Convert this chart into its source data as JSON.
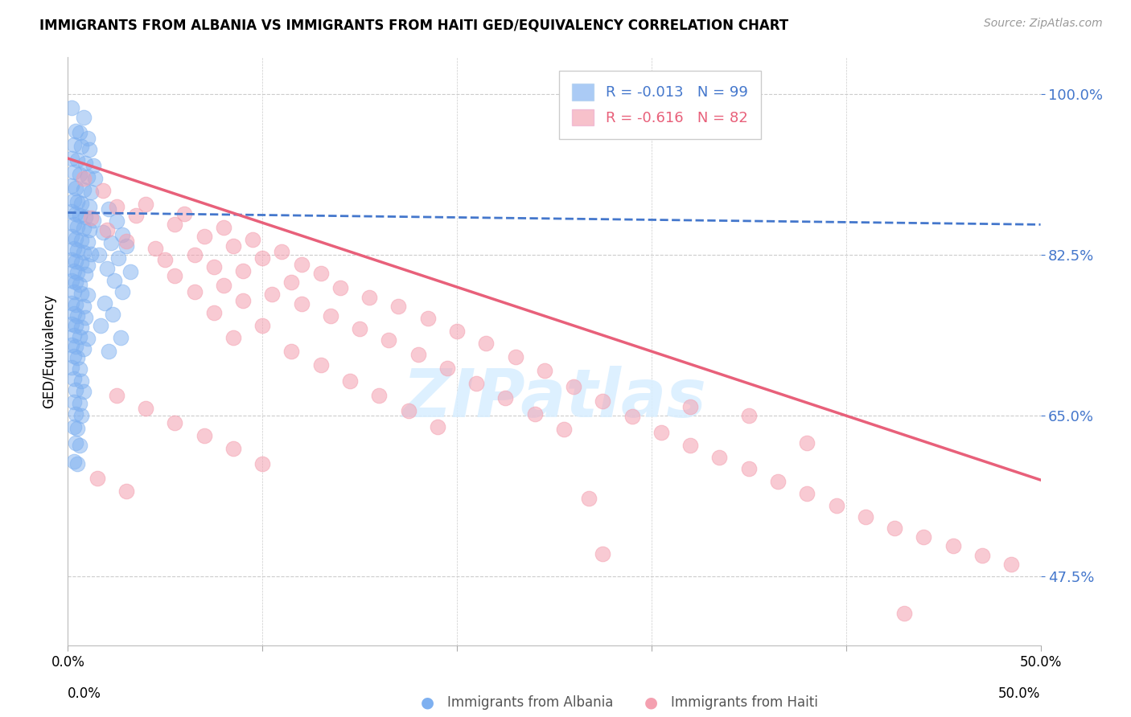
{
  "title": "IMMIGRANTS FROM ALBANIA VS IMMIGRANTS FROM HAITI GED/EQUIVALENCY CORRELATION CHART",
  "source": "Source: ZipAtlas.com",
  "ylabel": "GED/Equivalency",
  "yticks": [
    0.475,
    0.65,
    0.825,
    1.0
  ],
  "ytick_labels": [
    "47.5%",
    "65.0%",
    "82.5%",
    "100.0%"
  ],
  "xmin": 0.0,
  "xmax": 0.5,
  "ymin": 0.4,
  "ymax": 1.04,
  "legend_albania_R": "-0.013",
  "legend_albania_N": "99",
  "legend_haiti_R": "-0.616",
  "legend_haiti_N": "82",
  "albania_color": "#7EB0F0",
  "haiti_color": "#F4A0B0",
  "trendline_albania_color": "#4477CC",
  "trendline_haiti_color": "#E8607A",
  "watermark_color": "#D8EEFF",
  "albania_points": [
    [
      0.002,
      0.985
    ],
    [
      0.008,
      0.975
    ],
    [
      0.004,
      0.96
    ],
    [
      0.006,
      0.958
    ],
    [
      0.01,
      0.952
    ],
    [
      0.003,
      0.945
    ],
    [
      0.007,
      0.943
    ],
    [
      0.011,
      0.94
    ],
    [
      0.002,
      0.93
    ],
    [
      0.005,
      0.928
    ],
    [
      0.009,
      0.925
    ],
    [
      0.013,
      0.922
    ],
    [
      0.003,
      0.915
    ],
    [
      0.006,
      0.913
    ],
    [
      0.01,
      0.91
    ],
    [
      0.014,
      0.908
    ],
    [
      0.002,
      0.9
    ],
    [
      0.004,
      0.898
    ],
    [
      0.008,
      0.896
    ],
    [
      0.012,
      0.893
    ],
    [
      0.003,
      0.885
    ],
    [
      0.005,
      0.883
    ],
    [
      0.007,
      0.881
    ],
    [
      0.011,
      0.878
    ],
    [
      0.002,
      0.872
    ],
    [
      0.004,
      0.87
    ],
    [
      0.006,
      0.868
    ],
    [
      0.009,
      0.866
    ],
    [
      0.013,
      0.863
    ],
    [
      0.003,
      0.858
    ],
    [
      0.005,
      0.856
    ],
    [
      0.008,
      0.854
    ],
    [
      0.011,
      0.852
    ],
    [
      0.002,
      0.845
    ],
    [
      0.004,
      0.843
    ],
    [
      0.007,
      0.841
    ],
    [
      0.01,
      0.839
    ],
    [
      0.003,
      0.832
    ],
    [
      0.005,
      0.83
    ],
    [
      0.008,
      0.828
    ],
    [
      0.012,
      0.826
    ],
    [
      0.002,
      0.82
    ],
    [
      0.004,
      0.818
    ],
    [
      0.007,
      0.816
    ],
    [
      0.01,
      0.814
    ],
    [
      0.003,
      0.808
    ],
    [
      0.005,
      0.806
    ],
    [
      0.009,
      0.804
    ],
    [
      0.002,
      0.797
    ],
    [
      0.004,
      0.795
    ],
    [
      0.006,
      0.793
    ],
    [
      0.003,
      0.785
    ],
    [
      0.007,
      0.783
    ],
    [
      0.01,
      0.781
    ],
    [
      0.002,
      0.773
    ],
    [
      0.004,
      0.771
    ],
    [
      0.008,
      0.769
    ],
    [
      0.003,
      0.761
    ],
    [
      0.005,
      0.759
    ],
    [
      0.009,
      0.757
    ],
    [
      0.002,
      0.75
    ],
    [
      0.004,
      0.748
    ],
    [
      0.007,
      0.746
    ],
    [
      0.003,
      0.738
    ],
    [
      0.006,
      0.736
    ],
    [
      0.01,
      0.734
    ],
    [
      0.002,
      0.727
    ],
    [
      0.004,
      0.725
    ],
    [
      0.008,
      0.723
    ],
    [
      0.003,
      0.715
    ],
    [
      0.005,
      0.713
    ],
    [
      0.002,
      0.703
    ],
    [
      0.006,
      0.701
    ],
    [
      0.003,
      0.69
    ],
    [
      0.007,
      0.688
    ],
    [
      0.004,
      0.678
    ],
    [
      0.008,
      0.676
    ],
    [
      0.003,
      0.665
    ],
    [
      0.006,
      0.663
    ],
    [
      0.004,
      0.652
    ],
    [
      0.007,
      0.65
    ],
    [
      0.003,
      0.638
    ],
    [
      0.005,
      0.636
    ],
    [
      0.004,
      0.62
    ],
    [
      0.006,
      0.618
    ],
    [
      0.003,
      0.6
    ],
    [
      0.005,
      0.598
    ],
    [
      0.021,
      0.875
    ],
    [
      0.025,
      0.862
    ],
    [
      0.018,
      0.85
    ],
    [
      0.028,
      0.847
    ],
    [
      0.022,
      0.838
    ],
    [
      0.03,
      0.835
    ],
    [
      0.016,
      0.825
    ],
    [
      0.026,
      0.822
    ],
    [
      0.02,
      0.81
    ],
    [
      0.032,
      0.807
    ],
    [
      0.024,
      0.797
    ],
    [
      0.028,
      0.785
    ],
    [
      0.019,
      0.773
    ],
    [
      0.023,
      0.76
    ],
    [
      0.017,
      0.748
    ],
    [
      0.027,
      0.735
    ],
    [
      0.021,
      0.72
    ]
  ],
  "haiti_points": [
    [
      0.008,
      0.908
    ],
    [
      0.018,
      0.895
    ],
    [
      0.04,
      0.88
    ],
    [
      0.025,
      0.878
    ],
    [
      0.06,
      0.87
    ],
    [
      0.035,
      0.868
    ],
    [
      0.012,
      0.865
    ],
    [
      0.055,
      0.858
    ],
    [
      0.08,
      0.855
    ],
    [
      0.02,
      0.852
    ],
    [
      0.07,
      0.845
    ],
    [
      0.095,
      0.842
    ],
    [
      0.03,
      0.84
    ],
    [
      0.085,
      0.835
    ],
    [
      0.045,
      0.832
    ],
    [
      0.11,
      0.829
    ],
    [
      0.065,
      0.825
    ],
    [
      0.1,
      0.822
    ],
    [
      0.05,
      0.82
    ],
    [
      0.12,
      0.815
    ],
    [
      0.075,
      0.812
    ],
    [
      0.09,
      0.808
    ],
    [
      0.13,
      0.805
    ],
    [
      0.055,
      0.802
    ],
    [
      0.115,
      0.795
    ],
    [
      0.08,
      0.792
    ],
    [
      0.14,
      0.789
    ],
    [
      0.065,
      0.785
    ],
    [
      0.105,
      0.782
    ],
    [
      0.155,
      0.779
    ],
    [
      0.09,
      0.775
    ],
    [
      0.12,
      0.772
    ],
    [
      0.17,
      0.769
    ],
    [
      0.075,
      0.762
    ],
    [
      0.135,
      0.759
    ],
    [
      0.185,
      0.756
    ],
    [
      0.1,
      0.748
    ],
    [
      0.15,
      0.745
    ],
    [
      0.2,
      0.742
    ],
    [
      0.085,
      0.735
    ],
    [
      0.165,
      0.732
    ],
    [
      0.215,
      0.729
    ],
    [
      0.115,
      0.72
    ],
    [
      0.18,
      0.717
    ],
    [
      0.23,
      0.714
    ],
    [
      0.13,
      0.705
    ],
    [
      0.195,
      0.702
    ],
    [
      0.245,
      0.699
    ],
    [
      0.145,
      0.688
    ],
    [
      0.21,
      0.685
    ],
    [
      0.26,
      0.682
    ],
    [
      0.16,
      0.672
    ],
    [
      0.225,
      0.669
    ],
    [
      0.275,
      0.666
    ],
    [
      0.175,
      0.655
    ],
    [
      0.24,
      0.652
    ],
    [
      0.29,
      0.649
    ],
    [
      0.19,
      0.638
    ],
    [
      0.255,
      0.635
    ],
    [
      0.305,
      0.632
    ],
    [
      0.025,
      0.672
    ],
    [
      0.04,
      0.658
    ],
    [
      0.055,
      0.642
    ],
    [
      0.07,
      0.628
    ],
    [
      0.085,
      0.614
    ],
    [
      0.1,
      0.598
    ],
    [
      0.015,
      0.582
    ],
    [
      0.03,
      0.568
    ],
    [
      0.32,
      0.618
    ],
    [
      0.335,
      0.605
    ],
    [
      0.35,
      0.592
    ],
    [
      0.365,
      0.578
    ],
    [
      0.38,
      0.565
    ],
    [
      0.395,
      0.552
    ],
    [
      0.41,
      0.54
    ],
    [
      0.425,
      0.528
    ],
    [
      0.44,
      0.518
    ],
    [
      0.455,
      0.508
    ],
    [
      0.47,
      0.498
    ],
    [
      0.485,
      0.488
    ],
    [
      0.35,
      0.65
    ],
    [
      0.32,
      0.66
    ],
    [
      0.268,
      0.56
    ],
    [
      0.38,
      0.62
    ],
    [
      0.275,
      0.5
    ],
    [
      0.43,
      0.435
    ]
  ],
  "albania_trend_x": [
    0.0,
    0.5
  ],
  "albania_trend_y": [
    0.871,
    0.858
  ],
  "haiti_trend_x": [
    0.0,
    0.5
  ],
  "haiti_trend_y": [
    0.93,
    0.58
  ]
}
